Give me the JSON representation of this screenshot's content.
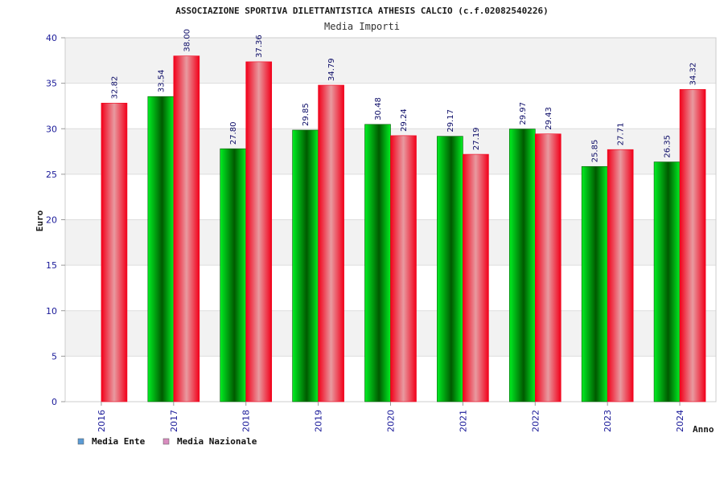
{
  "colors": {
    "ente_legend": "#5b9bd5",
    "nazionale_legend": "#d98cbf",
    "ente_bar_dark": "#005a00",
    "ente_bar_light": "#00ee22",
    "nazionale_bar_dark": "#f2001a",
    "nazionale_bar_light": "#e89aa0",
    "band": "#f2f2f2",
    "grid": "#dddddd",
    "tick_text": "#1a1a99",
    "label_text": "#0a0a66"
  },
  "chart_data": {
    "type": "bar",
    "title": "ASSOCIAZIONE SPORTIVA DILETTANTISTICA ATHESIS CALCIO (c.f.02082540226)",
    "subtitle": "Media Importi",
    "xlabel": "Anno",
    "ylabel": "Euro",
    "ylim": [
      0,
      40
    ],
    "yticks": [
      0,
      5,
      10,
      15,
      20,
      25,
      30,
      35,
      40
    ],
    "grid": true,
    "legend_position": "bottom-left",
    "categories": [
      "2016",
      "2017",
      "2018",
      "2019",
      "2020",
      "2021",
      "2022",
      "2023",
      "2024"
    ],
    "series": [
      {
        "name": "Media Ente",
        "values": [
          null,
          33.54,
          27.8,
          29.85,
          30.48,
          29.17,
          29.97,
          25.85,
          26.35
        ],
        "labels": [
          "",
          "33.54",
          "27.80",
          "29.85",
          "30.48",
          "29.17",
          "29.97",
          "25.85",
          "26.35"
        ]
      },
      {
        "name": "Media Nazionale",
        "values": [
          32.82,
          38.0,
          37.36,
          34.79,
          29.24,
          27.19,
          29.43,
          27.71,
          34.32
        ],
        "labels": [
          "32.82",
          "38.00",
          "37.36",
          "34.79",
          "29.24",
          "27.19",
          "29.43",
          "27.71",
          "34.32"
        ]
      }
    ]
  }
}
